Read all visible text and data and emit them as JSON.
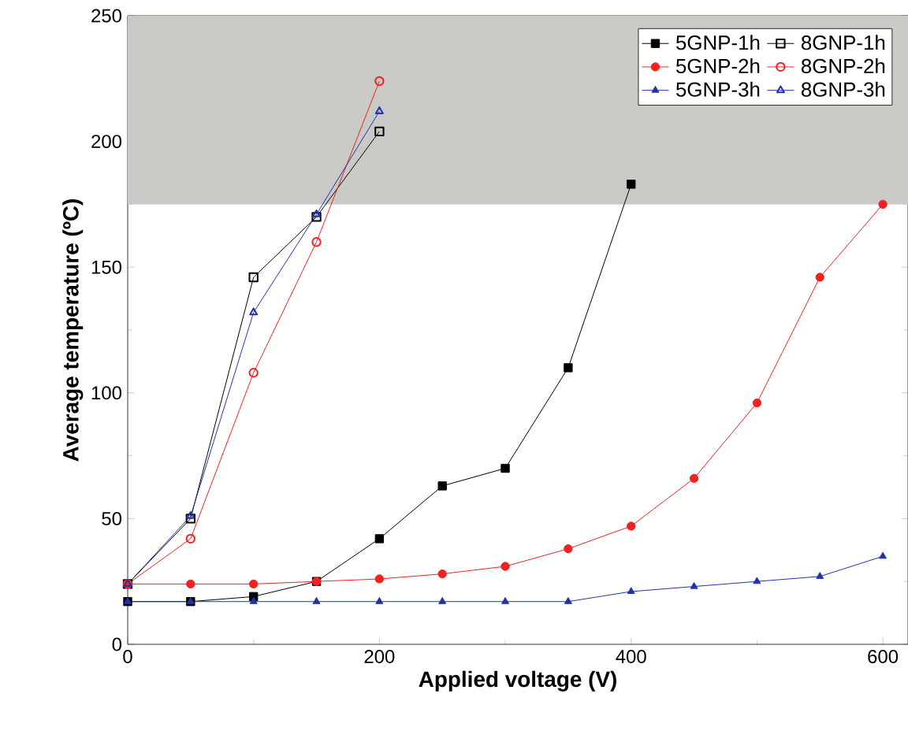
{
  "chart_data": {
    "type": "line",
    "xlabel": "Applied voltage (V)",
    "ylabel": "Average temperature (ºC)",
    "xlim": [
      0,
      620
    ],
    "ylim": [
      0,
      250
    ],
    "xticks": [
      0,
      200,
      400,
      600
    ],
    "yticks": [
      0,
      50,
      100,
      150,
      200,
      250
    ],
    "legend": "top right",
    "grid": false,
    "line_style": "solid",
    "bands": [
      {
        "axis": "y",
        "from": 175,
        "to": 250,
        "color": "#c9c9c5"
      }
    ],
    "series": [
      {
        "name": "5GNP-1h",
        "color": "#000000",
        "marker": "square",
        "x": [
          0,
          50,
          100,
          150,
          200,
          250,
          300,
          350,
          400
        ],
        "values": [
          17,
          17,
          19,
          25,
          42,
          63,
          70,
          110,
          183
        ]
      },
      {
        "name": "8GNP-1h",
        "color": "#000000",
        "marker": "square",
        "x": [
          0,
          50,
          100,
          150,
          200
        ],
        "values": [
          24,
          50,
          146,
          170,
          204
        ]
      },
      {
        "name": "5GNP-2h",
        "color": "#ee2222",
        "marker": "circle",
        "x": [
          0,
          50,
          100,
          150,
          200,
          250,
          300,
          350,
          400,
          450,
          500,
          550,
          600
        ],
        "values": [
          24,
          24,
          24,
          25,
          26,
          28,
          31,
          38,
          47,
          66,
          96,
          146,
          175
        ]
      },
      {
        "name": "8GNP-2h",
        "color": "#ee2222",
        "marker": "circle",
        "x": [
          0,
          50,
          100,
          150,
          200
        ],
        "values": [
          24,
          42,
          108,
          160,
          224
        ]
      },
      {
        "name": "5GNP-3h",
        "color": "#2233aa",
        "marker": "triangle",
        "x": [
          0,
          50,
          100,
          150,
          200,
          250,
          300,
          350,
          400,
          450,
          500,
          550,
          600
        ],
        "values": [
          17,
          17,
          17,
          17,
          17,
          17,
          17,
          17,
          21,
          23,
          25,
          27,
          35
        ]
      },
      {
        "name": "8GNP-3h",
        "color": "#2233aa",
        "marker": "triangle",
        "x": [
          0,
          50,
          100,
          150,
          200
        ],
        "values": [
          24,
          51,
          132,
          171,
          212
        ]
      }
    ]
  }
}
